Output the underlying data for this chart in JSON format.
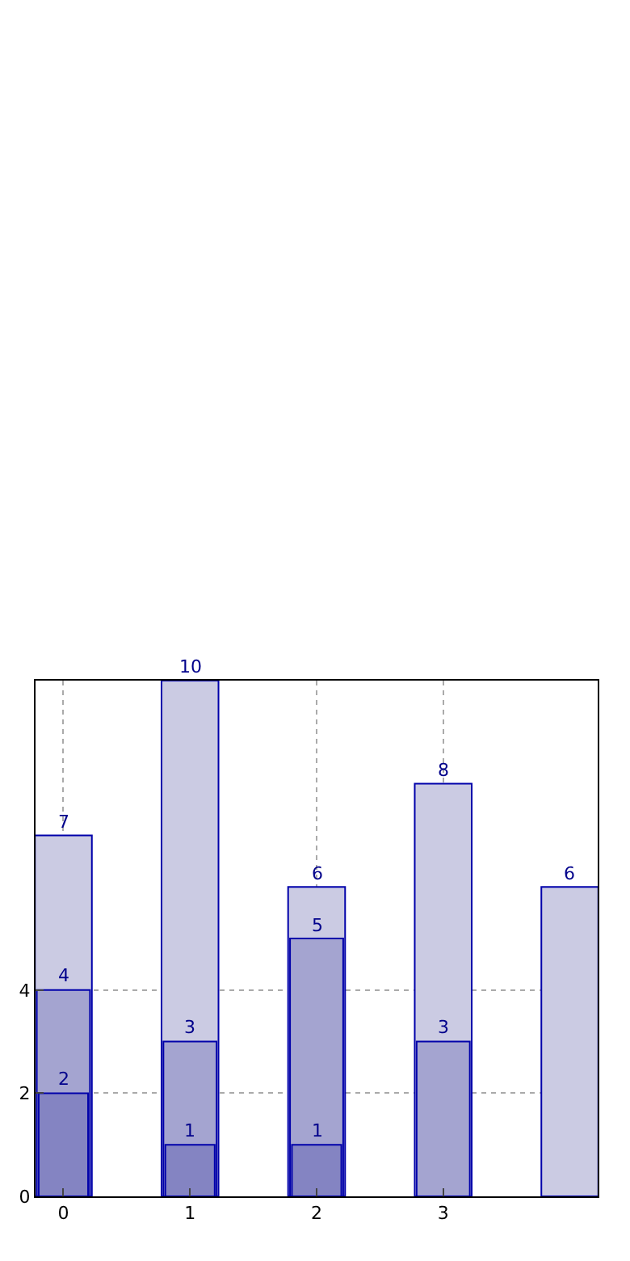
{
  "chart_data": {
    "type": "bar",
    "data_labels": true,
    "categories": [
      "0",
      "1",
      "2",
      "3",
      null
    ],
    "series": [
      {
        "color": "#cbcbe3",
        "values": [
          7,
          10,
          6,
          8,
          6
        ]
      },
      {
        "color": "#a4a4d0",
        "values": [
          4,
          3,
          5,
          3,
          null
        ]
      },
      {
        "color": "#8484c2",
        "values": [
          2,
          1,
          1,
          null,
          null
        ]
      }
    ],
    "ylim": [
      0,
      10
    ],
    "yticks": [
      0,
      2,
      4
    ],
    "grid": true
  }
}
